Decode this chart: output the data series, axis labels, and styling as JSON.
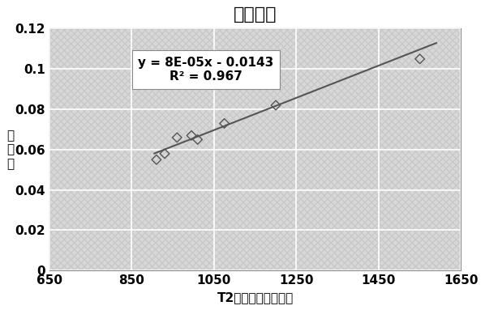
{
  "title": "拟合方程",
  "xlabel": "T2弛豐谱总信号幅値",
  "ylabel": "含水率",
  "scatter_x": [
    910,
    930,
    960,
    995,
    1010,
    1075,
    1200,
    1550
  ],
  "scatter_y": [
    0.055,
    0.058,
    0.066,
    0.067,
    0.065,
    0.073,
    0.082,
    0.105
  ],
  "fit_slope": 8e-05,
  "fit_intercept": -0.0143,
  "fit_x_start": 905,
  "fit_x_end": 1590,
  "fit_label_line1": "y = 8E-05x - 0.0143",
  "fit_label_line2": "R² = 0.967",
  "xlim": [
    650,
    1650
  ],
  "ylim": [
    0,
    0.12
  ],
  "xticks": [
    650,
    850,
    1050,
    1250,
    1450,
    1650
  ],
  "yticks": [
    0,
    0.02,
    0.04,
    0.06,
    0.08,
    0.1,
    0.12
  ],
  "ytick_labels": [
    "0",
    "0.02",
    "0.04",
    "0.06",
    "0.08",
    "0.1",
    "0.12"
  ],
  "scatter_edge_color": "#555555",
  "line_color": "#555555",
  "plot_bg_color": "#d8d8d8",
  "fig_bg_color": "#ffffff",
  "grid_color": "#ffffff",
  "title_fontsize": 16,
  "label_fontsize": 11,
  "tick_fontsize": 11,
  "annotation_fontsize": 11
}
